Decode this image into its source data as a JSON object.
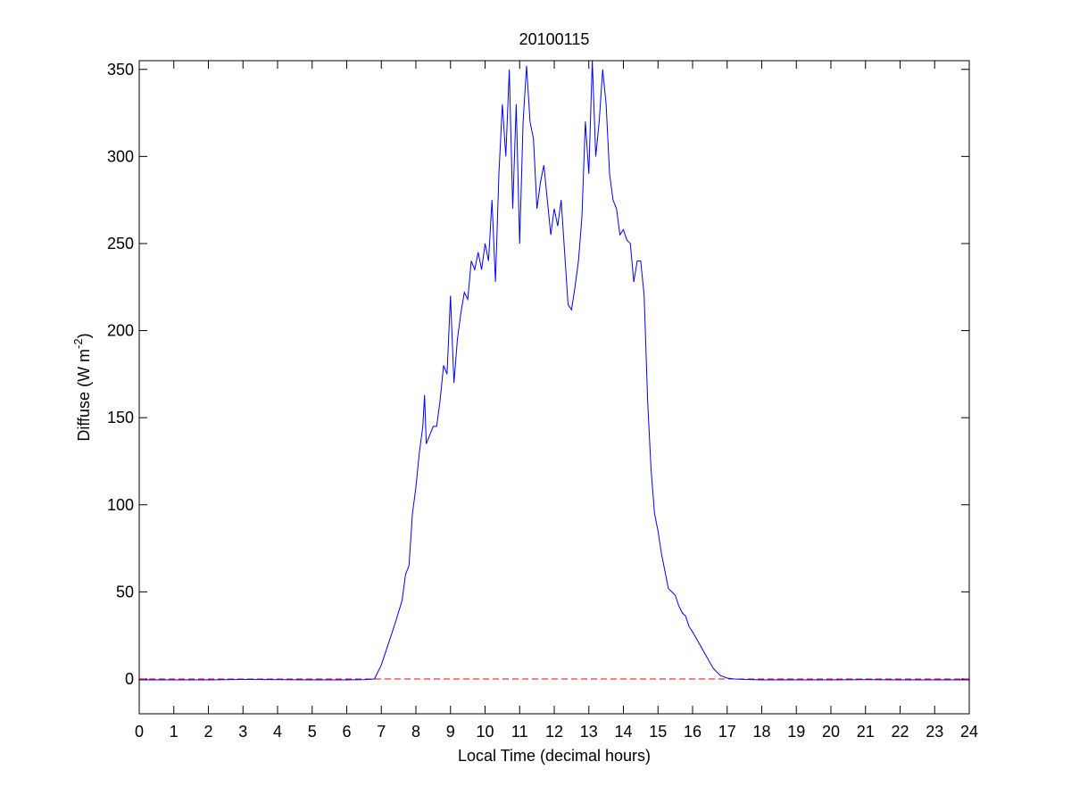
{
  "chart_data": {
    "type": "line",
    "title": "20100115",
    "x_label": "Local Time (decimal hours)",
    "y_label": {
      "text": "Diffuse (W m",
      "superscript": "-2",
      "suffix": ")"
    },
    "x": [
      0,
      1,
      2,
      3,
      4,
      5,
      6,
      6.5,
      6.8,
      7.0,
      7.2,
      7.4,
      7.6,
      7.7,
      7.8,
      7.9,
      8.0,
      8.1,
      8.2,
      8.25,
      8.3,
      8.4,
      8.5,
      8.6,
      8.7,
      8.8,
      8.9,
      9.0,
      9.1,
      9.2,
      9.3,
      9.4,
      9.5,
      9.6,
      9.7,
      9.8,
      9.9,
      10.0,
      10.1,
      10.2,
      10.3,
      10.4,
      10.5,
      10.6,
      10.7,
      10.8,
      10.9,
      11.0,
      11.1,
      11.2,
      11.3,
      11.4,
      11.5,
      11.6,
      11.7,
      11.8,
      11.9,
      12.0,
      12.1,
      12.2,
      12.3,
      12.4,
      12.5,
      12.6,
      12.7,
      12.8,
      12.9,
      13.0,
      13.1,
      13.2,
      13.3,
      13.4,
      13.5,
      13.6,
      13.7,
      13.8,
      13.9,
      14.0,
      14.1,
      14.2,
      14.3,
      14.4,
      14.5,
      14.6,
      14.7,
      14.8,
      14.9,
      15.0,
      15.1,
      15.2,
      15.3,
      15.4,
      15.5,
      15.6,
      15.7,
      15.8,
      15.9,
      16.0,
      16.2,
      16.4,
      16.6,
      16.8,
      17.0,
      17.2,
      17.5,
      18,
      19,
      20,
      21,
      22,
      23,
      24
    ],
    "series": [
      {
        "name": "Diffuse",
        "color": "#0000ff",
        "values": [
          -0.5,
          -0.5,
          -0.5,
          -0.3,
          -0.4,
          -0.5,
          -0.5,
          -0.4,
          0,
          8,
          20,
          32,
          45,
          60,
          65,
          95,
          110,
          130,
          145,
          163,
          135,
          140,
          145,
          145,
          160,
          180,
          175,
          220,
          170,
          195,
          210,
          222,
          218,
          240,
          235,
          245,
          235,
          250,
          240,
          275,
          228,
          290,
          330,
          300,
          350,
          270,
          330,
          250,
          320,
          352,
          320,
          310,
          270,
          285,
          295,
          275,
          255,
          270,
          260,
          275,
          245,
          215,
          212,
          225,
          240,
          265,
          320,
          290,
          355,
          300,
          320,
          350,
          330,
          290,
          275,
          270,
          255,
          258,
          252,
          250,
          228,
          240,
          240,
          220,
          160,
          120,
          95,
          85,
          72,
          62,
          52,
          50,
          48,
          42,
          38,
          36,
          30,
          27,
          20,
          13,
          6,
          2,
          0.5,
          0,
          -0.3,
          -0.5,
          -0.5,
          -0.5,
          -0.4,
          -0.5,
          -0.5,
          -0.5
        ]
      }
    ],
    "reference_line": {
      "value": 0,
      "color": "#ff0000",
      "style": "dashed"
    },
    "xlim": [
      0,
      24
    ],
    "xticks": [
      0,
      1,
      2,
      3,
      4,
      5,
      6,
      7,
      8,
      9,
      10,
      11,
      12,
      13,
      14,
      15,
      16,
      17,
      18,
      19,
      20,
      21,
      22,
      23,
      24
    ],
    "ylim": [
      -20,
      355
    ],
    "yticks": [
      0,
      50,
      100,
      150,
      200,
      250,
      300,
      350
    ],
    "grid": false
  }
}
